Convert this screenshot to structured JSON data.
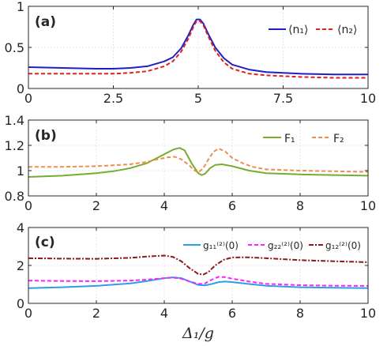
{
  "chart_data": [
    {
      "type": "line",
      "panel_label": "(a)",
      "xlim": [
        0,
        10
      ],
      "ylim": [
        0,
        1
      ],
      "x_ticks": [
        "0",
        "2.5",
        "5",
        "7.5",
        "10"
      ],
      "x_tick_values": [
        0,
        2.5,
        5,
        7.5,
        10
      ],
      "y_ticks": [
        "0",
        "0.5",
        "1"
      ],
      "y_tick_values": [
        0,
        0.5,
        1
      ],
      "grid": true,
      "legend_position": "top-right",
      "series": [
        {
          "name": "⟨n₁⟩",
          "color": "#1f1fc8",
          "style": "solid",
          "x": [
            0,
            1,
            2,
            2.5,
            3,
            3.5,
            4,
            4.25,
            4.5,
            4.7,
            4.85,
            4.95,
            5.05,
            5.15,
            5.3,
            5.5,
            5.75,
            6,
            6.5,
            7,
            7.5,
            8,
            9,
            10
          ],
          "y": [
            0.26,
            0.25,
            0.24,
            0.24,
            0.25,
            0.27,
            0.33,
            0.38,
            0.49,
            0.64,
            0.77,
            0.84,
            0.84,
            0.79,
            0.66,
            0.5,
            0.37,
            0.29,
            0.23,
            0.2,
            0.19,
            0.18,
            0.17,
            0.17
          ]
        },
        {
          "name": "⟨n₂⟩",
          "color": "#e02020",
          "style": "dashed",
          "x": [
            0,
            1,
            2,
            2.5,
            3,
            3.5,
            4,
            4.25,
            4.5,
            4.7,
            4.85,
            4.95,
            5.05,
            5.15,
            5.3,
            5.5,
            5.75,
            6,
            6.5,
            7,
            7.5,
            8,
            9,
            10
          ],
          "y": [
            0.18,
            0.18,
            0.18,
            0.18,
            0.19,
            0.21,
            0.27,
            0.33,
            0.45,
            0.6,
            0.74,
            0.82,
            0.82,
            0.77,
            0.63,
            0.46,
            0.32,
            0.24,
            0.18,
            0.16,
            0.15,
            0.14,
            0.13,
            0.13
          ]
        }
      ]
    },
    {
      "type": "line",
      "panel_label": "(b)",
      "xlim": [
        0,
        10
      ],
      "ylim": [
        0.8,
        1.4
      ],
      "x_ticks": [
        "0",
        "2",
        "4",
        "6",
        "8",
        "10"
      ],
      "x_tick_values": [
        0,
        2,
        4,
        6,
        8,
        10
      ],
      "y_ticks": [
        "0.8",
        "1",
        "1.2",
        "1.4"
      ],
      "y_tick_values": [
        0.8,
        1.0,
        1.2,
        1.4
      ],
      "grid": true,
      "legend_position": "top-right",
      "series": [
        {
          "name": "F₁",
          "color": "#77ac30",
          "style": "solid",
          "x": [
            0,
            1,
            2,
            2.5,
            3,
            3.5,
            4,
            4.25,
            4.45,
            4.6,
            4.8,
            5.0,
            5.1,
            5.2,
            5.35,
            5.5,
            5.7,
            6,
            6.5,
            7,
            8,
            9,
            10
          ],
          "y": [
            0.95,
            0.96,
            0.98,
            0.995,
            1.02,
            1.06,
            1.13,
            1.165,
            1.18,
            1.16,
            1.06,
            0.98,
            0.965,
            0.975,
            1.02,
            1.045,
            1.05,
            1.035,
            1.0,
            0.98,
            0.97,
            0.965,
            0.96
          ]
        },
        {
          "name": "F₂",
          "color": "#f08c50",
          "style": "dashed",
          "x": [
            0,
            1,
            2,
            3,
            3.5,
            3.8,
            4.1,
            4.3,
            4.5,
            4.7,
            4.9,
            5.0,
            5.15,
            5.3,
            5.45,
            5.6,
            5.8,
            6.0,
            6.3,
            6.6,
            7,
            8,
            9,
            10
          ],
          "y": [
            1.03,
            1.03,
            1.035,
            1.05,
            1.07,
            1.09,
            1.105,
            1.11,
            1.09,
            1.05,
            1.0,
            0.985,
            1.02,
            1.09,
            1.15,
            1.175,
            1.15,
            1.1,
            1.06,
            1.03,
            1.01,
            1.0,
            0.995,
            0.99
          ]
        }
      ]
    },
    {
      "type": "line",
      "panel_label": "(c)",
      "xlim": [
        0,
        10
      ],
      "ylim": [
        0,
        4
      ],
      "x_ticks": [
        "0",
        "2",
        "4",
        "6",
        "8",
        "10"
      ],
      "x_tick_values": [
        0,
        2,
        4,
        6,
        8,
        10
      ],
      "y_ticks": [
        "0",
        "2",
        "4"
      ],
      "y_tick_values": [
        0,
        2,
        4
      ],
      "xlabel": "Δ₁/g",
      "grid": true,
      "legend_position": "top-right",
      "series": [
        {
          "name": "g₁₁⁽²⁾(0)",
          "color": "#2aa0e6",
          "style": "solid",
          "x": [
            0,
            1,
            2,
            3,
            3.5,
            4,
            4.25,
            4.5,
            4.75,
            5.0,
            5.2,
            5.4,
            5.6,
            5.8,
            6.0,
            6.5,
            7,
            8,
            9,
            10
          ],
          "y": [
            0.8,
            0.85,
            0.92,
            1.05,
            1.18,
            1.33,
            1.37,
            1.33,
            1.15,
            0.97,
            0.95,
            1.02,
            1.12,
            1.15,
            1.12,
            1.02,
            0.93,
            0.85,
            0.82,
            0.8
          ]
        },
        {
          "name": "g₂₂⁽²⁾(0)",
          "color": "#ff20ff",
          "style": "dashed",
          "x": [
            0,
            1,
            2,
            3,
            3.5,
            4,
            4.25,
            4.5,
            4.75,
            5.0,
            5.2,
            5.4,
            5.6,
            5.8,
            6.0,
            6.5,
            7,
            8,
            9,
            10
          ],
          "y": [
            1.2,
            1.18,
            1.17,
            1.2,
            1.25,
            1.33,
            1.36,
            1.3,
            1.15,
            1.02,
            1.05,
            1.25,
            1.4,
            1.38,
            1.3,
            1.15,
            1.03,
            0.96,
            0.93,
            0.92
          ]
        },
        {
          "name": "g₁₂⁽²⁾(0)",
          "color": "#8b1a1a",
          "style": "dashdot",
          "x": [
            0,
            1,
            2,
            3,
            3.5,
            4,
            4.25,
            4.5,
            4.75,
            5.0,
            5.15,
            5.3,
            5.5,
            5.75,
            6.0,
            6.5,
            7,
            8,
            9,
            10
          ],
          "y": [
            2.38,
            2.36,
            2.35,
            2.4,
            2.47,
            2.52,
            2.45,
            2.22,
            1.85,
            1.55,
            1.52,
            1.65,
            2.0,
            2.3,
            2.42,
            2.43,
            2.38,
            2.28,
            2.22,
            2.17
          ]
        }
      ]
    }
  ]
}
